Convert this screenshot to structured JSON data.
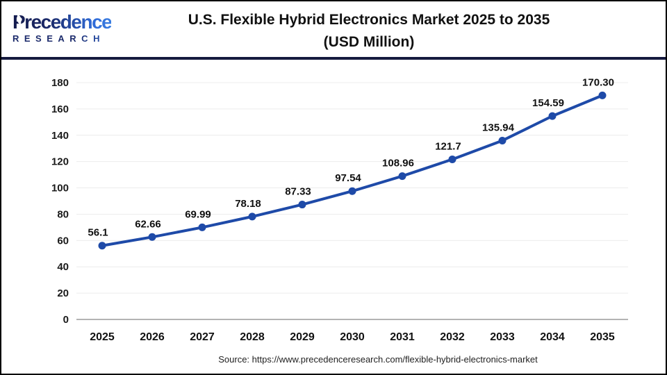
{
  "header": {
    "logo": {
      "line1": "Precedence",
      "line2": "RESEARCH"
    },
    "title_line1": "U.S. Flexible Hybrid Electronics Market 2025 to 2035",
    "title_line2": "(USD Million)"
  },
  "chart_data": {
    "type": "line",
    "title": "U.S. Flexible Hybrid Electronics Market 2025 to 2035 (USD Million)",
    "xlabel": "",
    "ylabel": "",
    "categories": [
      "2025",
      "2026",
      "2027",
      "2028",
      "2029",
      "2030",
      "2031",
      "2032",
      "2033",
      "2034",
      "2035"
    ],
    "values": [
      56.1,
      62.66,
      69.99,
      78.18,
      87.33,
      97.54,
      108.96,
      121.7,
      135.94,
      154.59,
      170.3
    ],
    "point_labels": [
      "56.1",
      "62.66",
      "69.99",
      "78.18",
      "87.33",
      "97.54",
      "108.96",
      "121.7",
      "135.94",
      "154.59",
      "170.30"
    ],
    "ylim": [
      0,
      180
    ],
    "y_ticks": [
      0,
      20,
      40,
      60,
      80,
      100,
      120,
      140,
      160,
      180
    ],
    "grid": true,
    "legend": false,
    "line_color": "#1e4aa8",
    "marker": "circle"
  },
  "footer": {
    "source": "Source: https://www.precedenceresearch.com/flexible-hybrid-electronics-market"
  },
  "colors": {
    "grid": "#ececec",
    "axis": "#b3b3b3",
    "separator": "#151a3f",
    "logo_navy": "#1b2a6b",
    "logo_blue": "#2f6bd8",
    "line_blue": "#1e4aa8"
  }
}
